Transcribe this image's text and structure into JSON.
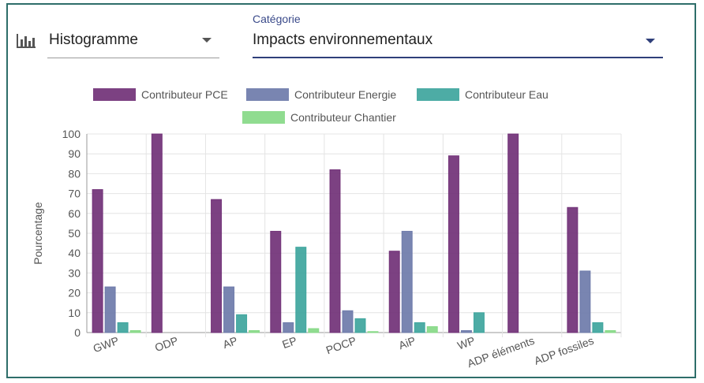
{
  "controls": {
    "chart_type_icon": "bar-chart-icon",
    "chart_type_value": "Histogramme",
    "category_label": "Catégorie",
    "category_value": "Impacts environnementaux"
  },
  "colors": {
    "frame": "#2e6e6a",
    "category_underline": "#2f3f7a"
  },
  "chart_data": {
    "type": "bar",
    "title": "",
    "xlabel": "",
    "ylabel": "Pourcentage",
    "ylim": [
      0,
      100
    ],
    "yticks": [
      0,
      10,
      20,
      30,
      40,
      50,
      60,
      70,
      80,
      90,
      100
    ],
    "grid": true,
    "legend_position": "top",
    "categories": [
      "GWP",
      "ODP",
      "AP",
      "EP",
      "POCP",
      "AiP",
      "WP",
      "ADP éléments",
      "ADP fossiles"
    ],
    "series": [
      {
        "name": "Contributeur PCE",
        "color": "#6e2c74",
        "values": [
          72,
          100,
          67,
          51,
          82,
          41,
          89,
          100,
          63
        ]
      },
      {
        "name": "Contributeur Energie",
        "color": "#6a78a8",
        "values": [
          23,
          0,
          23,
          5,
          11,
          51,
          1,
          0,
          31
        ]
      },
      {
        "name": "Contributeur Eau",
        "color": "#3aa39b",
        "values": [
          5,
          0,
          9,
          43,
          7,
          5,
          10,
          0,
          5
        ]
      },
      {
        "name": "Contributeur Chantier",
        "color": "#84d884",
        "values": [
          1,
          0,
          1,
          2,
          0.5,
          3,
          0,
          0,
          1
        ]
      }
    ]
  }
}
